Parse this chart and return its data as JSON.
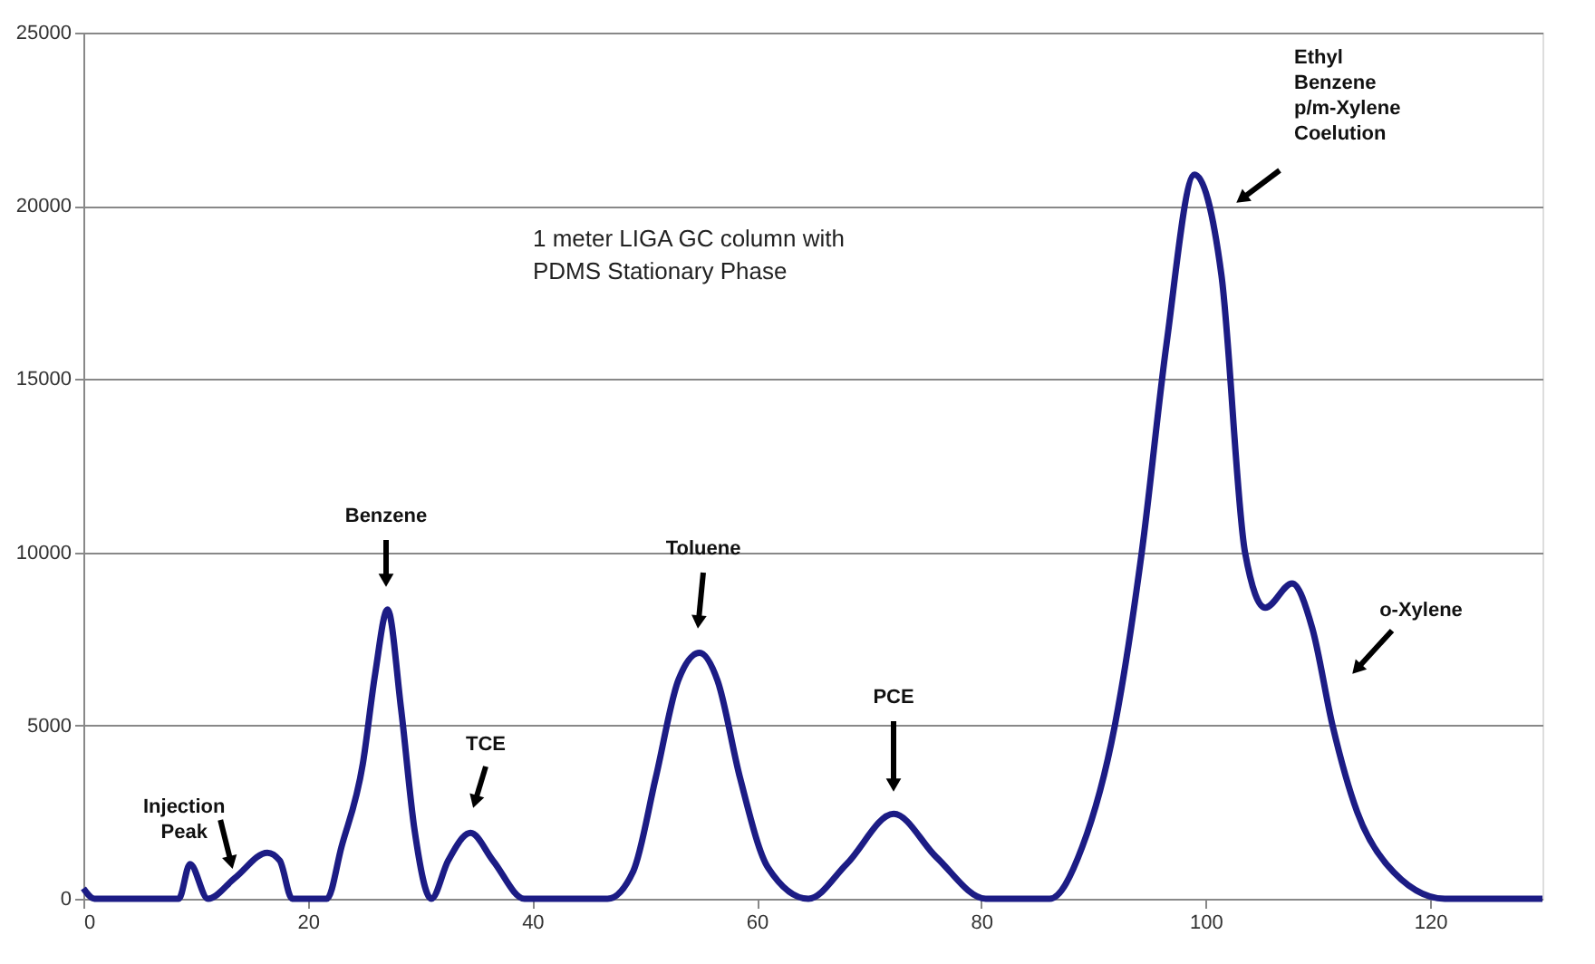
{
  "chart_data": {
    "type": "line",
    "series": [
      {
        "color": "#1c1c85",
        "x": [
          0,
          1,
          8.5,
          9.5,
          11.1,
          13.5,
          16.4,
          17.5,
          18.6,
          21.7,
          23,
          24.9,
          26,
          27.1,
          28.3,
          29.5,
          31,
          32.5,
          34.5,
          36.5,
          39.3,
          46.7,
          49,
          51,
          53,
          54.9,
          56.5,
          58.5,
          61,
          64.6,
          68,
          72.2,
          76,
          80.4,
          86.1,
          89,
          91.9,
          94.3,
          96.5,
          99,
          101.4,
          103.5,
          105.3,
          107.7,
          109.5,
          111.3,
          113.5,
          116.1,
          121.3,
          130
        ],
        "values": [
          300,
          0,
          0,
          1000,
          0,
          600,
          1330,
          1100,
          0,
          0,
          1500,
          3900,
          6500,
          8350,
          5500,
          2000,
          0,
          1100,
          1900,
          1100,
          0,
          0,
          800,
          3500,
          6300,
          7100,
          6300,
          3500,
          900,
          0,
          1000,
          2450,
          1200,
          0,
          0,
          1500,
          5000,
          10000,
          16000,
          20900,
          18000,
          10000,
          8400,
          9100,
          7800,
          5000,
          2500,
          1000,
          0,
          0
        ]
      }
    ],
    "xlim": [
      0,
      130
    ],
    "xticks": [
      0,
      20,
      40,
      60,
      80,
      100,
      120
    ],
    "ylim": [
      0,
      25000
    ],
    "yticks": [
      0,
      5000,
      10000,
      15000,
      20000,
      25000
    ],
    "grid": "y",
    "line_style": "solid",
    "marker": "none",
    "annotations": [
      {
        "text": "Injection\nPeak",
        "x": 13.5,
        "y": 600
      },
      "Benzene",
      "TCE",
      "Toluene",
      "PCE",
      "Ethyl\nBenzene\np/m-Xylene\nCoelution",
      "o-Xylene",
      "1 meter LIGA GC column with\nPDMS Stationary Phase"
    ]
  }
}
